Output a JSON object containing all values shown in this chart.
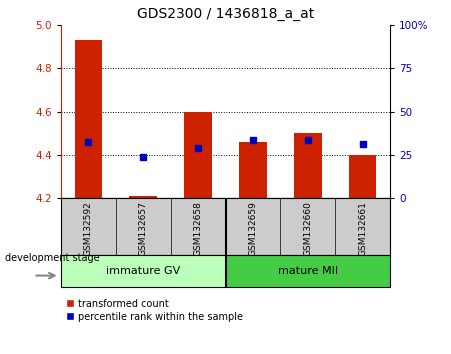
{
  "title": "GDS2300 / 1436818_a_at",
  "categories": [
    "GSM132592",
    "GSM132657",
    "GSM132658",
    "GSM132659",
    "GSM132660",
    "GSM132661"
  ],
  "red_values": [
    4.93,
    4.21,
    4.6,
    4.46,
    4.5,
    4.4
  ],
  "blue_values": [
    4.46,
    4.39,
    4.43,
    4.47,
    4.47,
    4.45
  ],
  "ylim_left": [
    4.2,
    5.0
  ],
  "ylim_right": [
    0,
    100
  ],
  "yticks_left": [
    4.2,
    4.4,
    4.6,
    4.8,
    5.0
  ],
  "yticks_right": [
    0,
    25,
    50,
    75,
    100
  ],
  "ytick_right_labels": [
    "0",
    "25",
    "50",
    "75",
    "100%"
  ],
  "group_label": "development stage",
  "legend_red": "transformed count",
  "legend_blue": "percentile rank within the sample",
  "bar_width": 0.5,
  "bar_bottom": 4.2,
  "red_color": "#cc2200",
  "blue_color": "#0000bb",
  "title_fontsize": 10,
  "tick_fontsize": 7.5,
  "grid_color": "black",
  "bg_group_gray": "#cccccc",
  "immature_color": "#bbffbb",
  "mature_color": "#44cc44"
}
